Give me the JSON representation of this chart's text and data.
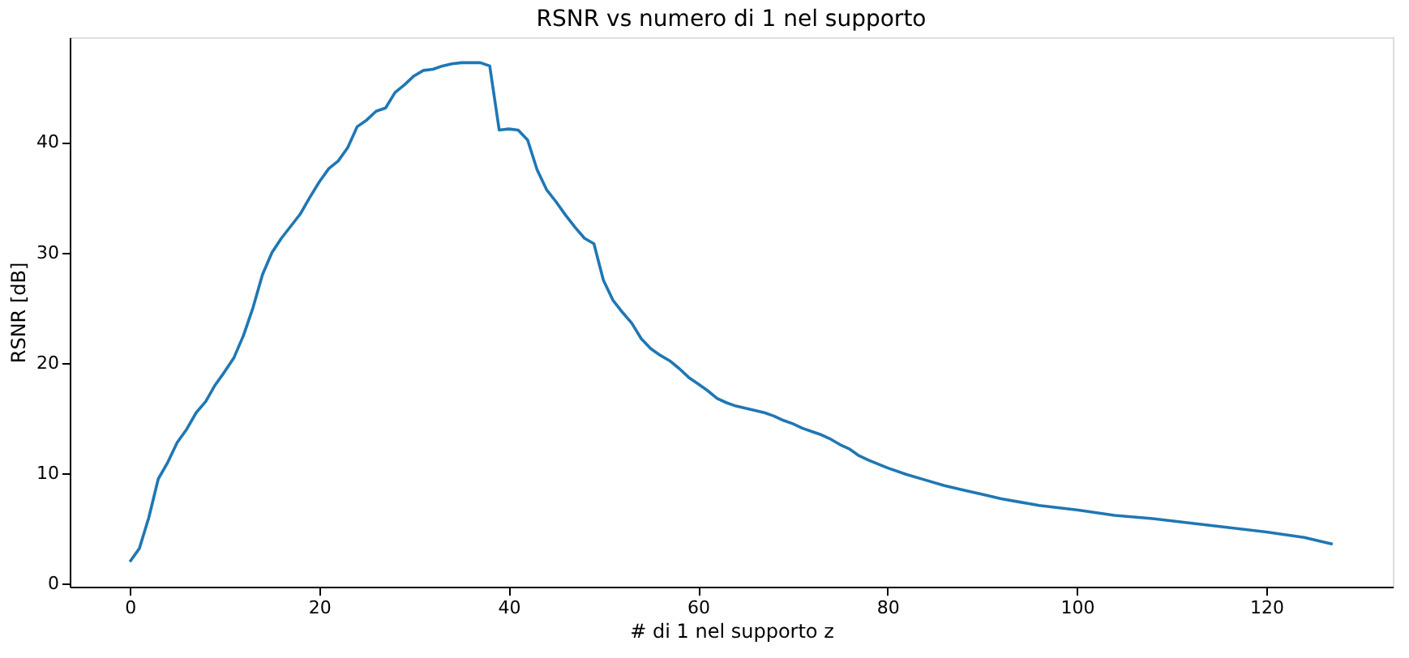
{
  "chart_data": {
    "type": "line",
    "title": "RSNR vs numero di 1 nel supporto",
    "xlabel": "# di 1 nel supporto z",
    "ylabel": "RSNR [dB]",
    "x": [
      0,
      1,
      2,
      3,
      4,
      5,
      6,
      7,
      8,
      9,
      10,
      11,
      12,
      13,
      14,
      15,
      16,
      17,
      18,
      19,
      20,
      21,
      22,
      23,
      24,
      25,
      26,
      27,
      28,
      29,
      30,
      31,
      32,
      33,
      34,
      35,
      36,
      37,
      38,
      39,
      40,
      41,
      42,
      43,
      44,
      45,
      46,
      47,
      48,
      49,
      50,
      51,
      52,
      53,
      54,
      55,
      56,
      57,
      58,
      59,
      60,
      61,
      62,
      63,
      64,
      65,
      66,
      67,
      68,
      69,
      70,
      71,
      72,
      73,
      74,
      75,
      76,
      77,
      78,
      80,
      82,
      84,
      86,
      88,
      90,
      92,
      94,
      96,
      100,
      104,
      108,
      112,
      116,
      120,
      124,
      127
    ],
    "series": [
      {
        "color": "#1f77b4",
        "values": [
          2.0,
          3.2,
          6,
          9.5,
          11,
          12.8,
          14,
          15.5,
          16.5,
          18,
          19.2,
          20.5,
          22.5,
          25,
          28,
          30,
          31.3,
          32.4,
          33.5,
          35,
          36.4,
          37.6,
          38.3,
          39.5,
          41.4,
          42,
          42.8,
          43.1,
          44.5,
          45.2,
          46,
          46.5,
          46.6,
          46.9,
          47.1,
          47.2,
          47.2,
          47.2,
          46.9,
          41.1,
          41.2,
          41.1,
          40.2,
          37.5,
          35.7,
          34.6,
          33.4,
          32.3,
          31.3,
          30.8,
          27.5,
          25.7,
          24.6,
          23.6,
          22.2,
          21.3,
          20.7,
          20.2,
          19.5,
          18.7,
          18.1,
          17.5,
          16.8,
          16.4,
          16.1,
          15.9,
          15.7,
          15.5,
          15.2,
          14.8,
          14.5,
          14.1,
          13.8,
          13.5,
          13.1,
          12.6,
          12.2,
          11.6,
          11.2,
          10.5,
          9.9,
          9.4,
          8.9,
          8.5,
          8.1,
          7.7,
          7.4,
          7.1,
          6.7,
          6.2,
          5.9,
          5.5,
          5.1,
          4.7,
          4.2,
          3.6
        ]
      }
    ],
    "xlim": [
      -6.35,
      133.35
    ],
    "ylim": [
      -0.26,
      49.5
    ],
    "xticks": [
      0,
      20,
      40,
      60,
      80,
      100,
      120
    ],
    "yticks": [
      0,
      10,
      20,
      30,
      40
    ],
    "grid": false,
    "marker": "none",
    "line_style": "solid"
  }
}
